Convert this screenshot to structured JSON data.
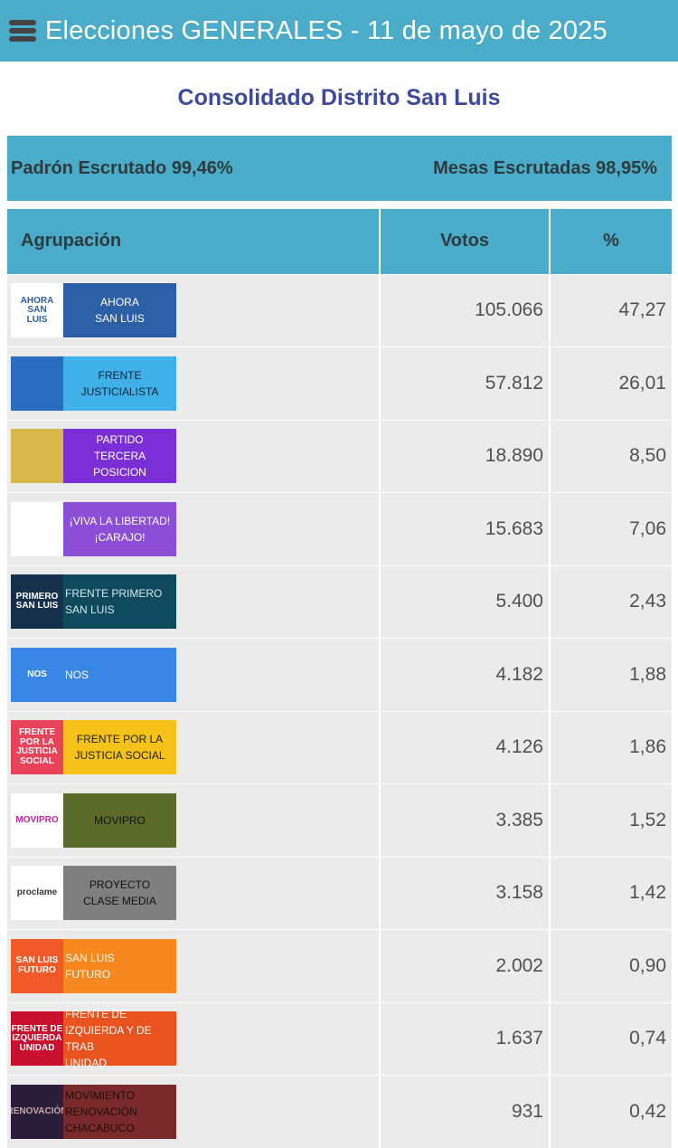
{
  "header": {
    "title": "Elecciones GENERALES - 11 de mayo de 2025",
    "menu_icon": "hamburger-menu-icon"
  },
  "district_title": "Consolidado Distrito San Luis",
  "progress": {
    "padron": "Padrón Escrutado 99,46%",
    "mesas": "Mesas Escrutadas 98,95%"
  },
  "table": {
    "headers": {
      "party": "Agrupación",
      "votes": "Votos",
      "pct": "%"
    },
    "rows": [
      {
        "label": "AHORA\nSAN LUIS",
        "logo_text": "AHORA\nSAN\nLUIS",
        "votes": "105.066",
        "pct": "47,27",
        "bg": "#2d5fa6",
        "logo_bg": "#ffffff",
        "logo_fg": "#2d5fa6",
        "fg": "#ffffff"
      },
      {
        "label": "FRENTE\nJUSTICIALISTA",
        "logo_text": "",
        "votes": "57.812",
        "pct": "26,01",
        "bg": "#3fb1e8",
        "logo_bg": "#2a6cc0",
        "logo_fg": "#ffffff",
        "fg": "#10223a"
      },
      {
        "label": "PARTIDO\nTERCERA\nPOSICION",
        "logo_text": "",
        "votes": "18.890",
        "pct": "8,50",
        "bg": "#7c2ed6",
        "logo_bg": "#d8b84a",
        "logo_fg": "#6a2fa0",
        "fg": "#ffffff"
      },
      {
        "label": "¡VIVA LA LIBERTAD!\n¡CARAJO!",
        "logo_text": "",
        "votes": "15.683",
        "pct": "7,06",
        "bg": "#8c4ed6",
        "logo_bg": "#ffffff",
        "logo_fg": "#5a2a9a",
        "fg": "#ffffff"
      },
      {
        "label": "FRENTE PRIMERO\nSAN LUIS",
        "logo_text": "PRIMERO\nSAN LUIS",
        "votes": "5.400",
        "pct": "2,43",
        "bg": "#0f4a5c",
        "logo_bg": "#15304a",
        "logo_fg": "#ffffff",
        "fg": "#d8e8ee"
      },
      {
        "label": "NOS",
        "logo_text": "NOS",
        "votes": "4.182",
        "pct": "1,88",
        "bg": "#3a86e6",
        "logo_bg": "#3a86e6",
        "logo_fg": "#ffffff",
        "fg": "#ffffff"
      },
      {
        "label": "FRENTE POR LA\nJUSTICIA SOCIAL",
        "logo_text": "FRENTE POR LA\nJUSTICIA SOCIAL",
        "votes": "4.126",
        "pct": "1,86",
        "bg": "#f6c21a",
        "logo_bg": "#e8435a",
        "logo_fg": "#ffffff",
        "fg": "#222222"
      },
      {
        "label": "MOVIPRO",
        "logo_text": "MOVIPRO",
        "votes": "3.385",
        "pct": "1,52",
        "bg": "#5a6b2a",
        "logo_bg": "#ffffff",
        "logo_fg": "#c0269a",
        "fg": "#111111"
      },
      {
        "label": "PROYECTO\nCLASE MEDIA",
        "logo_text": "proclame",
        "votes": "3.158",
        "pct": "1,42",
        "bg": "#7f7f7f",
        "logo_bg": "#ffffff",
        "logo_fg": "#3a3a3a",
        "fg": "#111111"
      },
      {
        "label": "SAN LUIS\nFUTURO",
        "logo_text": "SAN LUIS\nFUTURO",
        "votes": "2.002",
        "pct": "0,90",
        "bg": "#f5881f",
        "logo_bg": "#f05a28",
        "logo_fg": "#ffffff",
        "fg": "#ffffff"
      },
      {
        "label": "FRENTE DE\nIZQUIERDA Y DE TRAB\nUNIDAD",
        "logo_text": "FRENTE DE\nIZQUIERDA\nUNIDAD",
        "votes": "1.637",
        "pct": "0,74",
        "bg": "#e8531f",
        "logo_bg": "#c8102e",
        "logo_fg": "#ffffff",
        "fg": "#ffffff"
      },
      {
        "label": "MOVIMIENTO\nRENOVACIÓN\nCHACABUCO",
        "logo_text": "RENOVACIÓN",
        "votes": "931",
        "pct": "0,42",
        "bg": "#7a2a2a",
        "logo_bg": "#2a1e3a",
        "logo_fg": "#c8a8a8",
        "fg": "#1a0e0e"
      }
    ]
  }
}
